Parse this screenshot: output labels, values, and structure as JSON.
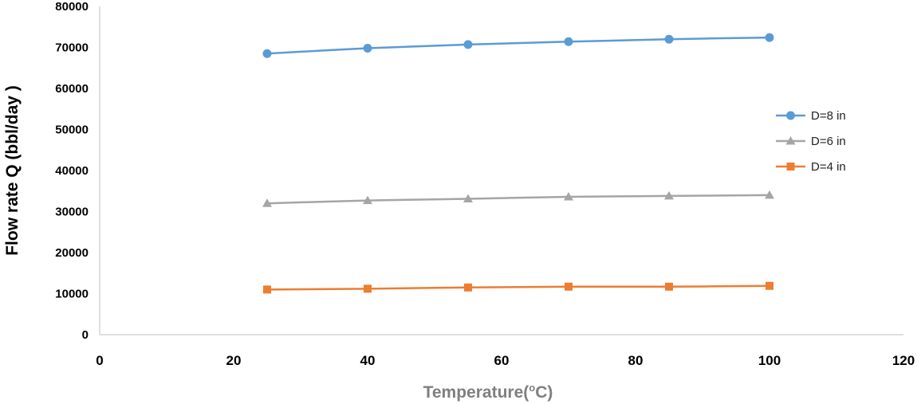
{
  "chart_data": {
    "type": "line",
    "title": "",
    "xlabel": "Temperature(",
    "xlabel_superscript": "o",
    "xlabel_suffix": "C)",
    "ylabel": "Flow rate Q (bbl/day )",
    "xlim": [
      0,
      120
    ],
    "ylim": [
      0,
      80000
    ],
    "xticks": [
      0,
      20,
      40,
      60,
      80,
      100,
      120
    ],
    "yticks": [
      0,
      10000,
      20000,
      30000,
      40000,
      50000,
      60000,
      70000,
      80000
    ],
    "grid": false,
    "legend_position": "right",
    "x": [
      25,
      40,
      55,
      70,
      85,
      100
    ],
    "series": [
      {
        "name": "D=8 in",
        "marker": "circle",
        "color": "#5b9bd5",
        "values": [
          68500,
          69800,
          70700,
          71400,
          72000,
          72400
        ]
      },
      {
        "name": "D=6 in",
        "marker": "triangle",
        "color": "#a5a5a5",
        "values": [
          32000,
          32700,
          33100,
          33600,
          33800,
          34000
        ]
      },
      {
        "name": "D=4 in",
        "marker": "square",
        "color": "#ed7d31",
        "values": [
          11000,
          11200,
          11500,
          11700,
          11700,
          11900
        ]
      }
    ]
  }
}
